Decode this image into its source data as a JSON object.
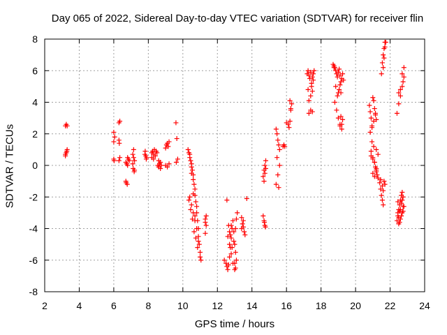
{
  "chart_data": {
    "type": "scatter",
    "title": "Day 065 of 2022, Sidereal Day-to-day VTEC variation (SDTVAR) for receiver flin",
    "xlabel": "GPS time / hours",
    "ylabel": "SDTVAR / TECUs",
    "xlim": [
      2,
      24
    ],
    "ylim": [
      -8,
      8
    ],
    "xticks": [
      2,
      4,
      6,
      8,
      10,
      12,
      14,
      16,
      18,
      20,
      22,
      24
    ],
    "yticks": [
      -8,
      -6,
      -4,
      -2,
      0,
      2,
      4,
      6,
      8
    ],
    "grid": true,
    "marker": "+",
    "color": "#ff0000",
    "series": [
      {
        "name": "SDTVAR",
        "x": [
          3.2,
          3.25,
          3.3,
          3.2,
          3.25,
          3.3,
          3.2,
          3.28,
          6.0,
          6.0,
          6.02,
          6.0,
          6.05,
          6.3,
          6.35,
          6.3,
          6.32,
          6.35,
          6.3,
          6.7,
          6.75,
          6.8,
          6.7,
          6.72,
          6.78,
          6.8,
          6.85,
          6.9,
          7.1,
          7.15,
          7.2,
          7.12,
          7.18,
          7.1,
          7.2,
          7.15,
          7.8,
          7.85,
          7.9,
          7.82,
          7.88,
          8.2,
          8.25,
          8.3,
          8.35,
          8.4,
          8.45,
          8.5,
          8.2,
          8.3,
          8.4,
          8.55,
          8.6,
          8.65,
          8.7,
          8.75,
          8.6,
          8.7,
          9.0,
          9.05,
          9.1,
          9.15,
          9.2,
          9.0,
          9.1,
          9.2,
          9.6,
          9.65,
          9.7,
          9.62,
          10.3,
          10.35,
          10.4,
          10.4,
          10.45,
          10.5,
          10.5,
          10.55,
          10.6,
          10.6,
          10.65,
          10.7,
          10.7,
          10.75,
          10.8,
          10.8,
          10.85,
          10.9,
          10.9,
          10.95,
          11.0,
          10.4,
          10.5,
          10.6,
          10.7,
          10.8,
          10.9,
          10.5,
          10.6,
          10.7,
          10.35,
          10.45,
          10.55,
          10.65,
          10.75,
          10.85,
          11.0,
          11.05,
          11.3,
          11.35,
          11.3,
          11.35,
          11.3,
          12.4,
          12.5,
          12.55,
          12.6,
          12.65,
          12.7,
          12.75,
          12.8,
          12.85,
          12.9,
          12.95,
          13.0,
          13.05,
          13.1,
          12.6,
          12.7,
          12.8,
          12.9,
          13.0,
          12.65,
          12.75,
          12.85,
          12.95,
          13.05,
          13.1,
          13.15,
          13.0,
          13.05,
          12.55,
          12.7,
          12.8,
          13.4,
          13.45,
          13.5,
          13.55,
          13.6,
          13.4,
          13.5,
          13.7,
          14.65,
          14.7,
          14.75,
          14.8,
          14.7,
          14.75,
          14.8,
          14.65,
          14.7,
          14.75,
          14.72,
          14.78,
          15.4,
          15.45,
          15.5,
          15.55,
          15.6,
          15.4,
          15.5,
          15.6,
          15.45,
          15.55,
          15.8,
          15.85,
          15.9,
          16.0,
          16.1,
          16.15,
          16.2,
          16.25,
          16.3,
          16.2,
          16.25,
          17.2,
          17.25,
          17.3,
          17.35,
          17.4,
          17.45,
          17.5,
          17.55,
          17.6,
          17.3,
          17.4,
          17.5,
          17.3,
          17.4,
          17.5,
          17.25,
          17.45,
          17.55,
          18.7,
          18.75,
          18.8,
          18.85,
          18.9,
          18.95,
          19.0,
          19.05,
          19.1,
          19.15,
          19.2,
          19.25,
          19.3,
          18.8,
          18.9,
          19.0,
          19.1,
          19.2,
          19.0,
          19.05,
          19.1,
          19.15,
          19.2,
          19.25,
          19.1,
          19.15,
          18.75,
          18.85,
          18.95,
          20.8,
          20.85,
          20.9,
          20.95,
          21.0,
          21.05,
          21.1,
          21.15,
          21.2,
          20.9,
          21.0,
          21.1,
          21.2,
          20.85,
          20.95,
          21.05,
          21.15,
          21.0,
          21.1,
          21.2,
          21.25,
          21.3,
          20.9,
          21.0,
          21.1,
          21.15,
          21.2,
          20.95,
          21.05,
          21.2,
          21.3,
          21.4,
          21.45,
          21.5,
          21.55,
          21.6,
          21.45,
          21.5,
          21.55,
          21.6,
          21.65,
          21.7,
          21.75,
          21.55,
          21.6,
          21.65,
          21.7,
          21.6,
          21.65,
          21.7,
          22.4,
          22.45,
          22.5,
          22.55,
          22.6,
          22.65,
          22.7,
          22.75,
          22.8,
          22.45,
          22.5,
          22.55,
          22.6,
          22.65,
          22.7,
          22.5,
          22.6,
          22.7,
          22.75,
          22.8,
          22.4,
          22.5,
          22.6,
          22.7,
          22.8,
          22.45,
          22.55,
          22.65,
          22.75,
          22.5,
          22.6,
          22.7,
          22.75
        ],
        "y": [
          2.5,
          2.6,
          2.5,
          0.6,
          0.8,
          1.0,
          0.7,
          0.9,
          1.5,
          0.4,
          0.3,
          2.1,
          1.8,
          2.7,
          2.8,
          1.6,
          1.4,
          0.5,
          0.3,
          0.2,
          0.1,
          0.0,
          -1.0,
          -1.1,
          -1.2,
          0.5,
          0.4,
          0.3,
          0.7,
          0.5,
          0.3,
          -0.2,
          -0.4,
          0.1,
          -0.3,
          1.0,
          0.7,
          0.6,
          0.5,
          0.9,
          0.4,
          0.8,
          0.9,
          0.7,
          1.0,
          0.6,
          0.9,
          0.8,
          0.5,
          0.4,
          0.6,
          0.0,
          -0.1,
          0.1,
          -0.2,
          0.0,
          0.3,
          0.2,
          1.1,
          1.3,
          1.4,
          1.2,
          1.5,
          0.0,
          -0.1,
          0.1,
          2.7,
          1.7,
          0.4,
          0.2,
          1.0,
          0.8,
          0.7,
          0.5,
          0.3,
          0.1,
          -0.1,
          -0.3,
          -0.6,
          -0.9,
          -1.2,
          -1.5,
          -1.9,
          -2.3,
          -2.6,
          -3.0,
          -3.5,
          -4.0,
          -4.5,
          -5.0,
          -5.5,
          -2.0,
          -2.5,
          -3.0,
          -3.5,
          -4.0,
          -4.8,
          -0.5,
          -1.8,
          -3.2,
          -2.2,
          -2.8,
          -3.4,
          -4.2,
          -4.6,
          -5.2,
          -5.8,
          -6.0,
          -3.4,
          -3.8,
          -4.3,
          -3.2,
          -3.6,
          -6.0,
          -6.2,
          -6.4,
          -6.6,
          -6.3,
          -5.8,
          -5.2,
          -4.6,
          -4.0,
          -3.5,
          -4.2,
          -5.0,
          -5.5,
          -6.0,
          -4.5,
          -5.0,
          -5.6,
          -6.2,
          -6.6,
          -3.8,
          -4.4,
          -5.2,
          -4.8,
          -4.0,
          -3.4,
          -3.0,
          -6.2,
          -6.5,
          -2.2,
          -4.2,
          -3.8,
          -4.0,
          -3.7,
          -3.5,
          -4.2,
          -4.4,
          -3.3,
          -3.9,
          -2.1,
          -0.7,
          -0.3,
          0.0,
          0.3,
          -1.0,
          -0.5,
          -0.2,
          -3.2,
          -3.5,
          -3.8,
          -3.6,
          -3.9,
          2.3,
          2.0,
          1.6,
          1.3,
          1.0,
          -1.2,
          -0.6,
          0.0,
          0.5,
          -1.4,
          1.2,
          1.3,
          1.2,
          2.7,
          2.6,
          2.4,
          2.8,
          3.5,
          3.9,
          4.1,
          3.6,
          5.8,
          6.0,
          5.7,
          5.5,
          5.9,
          5.2,
          5.6,
          5.8,
          6.0,
          4.1,
          4.4,
          4.7,
          3.3,
          3.5,
          3.4,
          4.8,
          5.0,
          5.4,
          6.4,
          6.3,
          6.2,
          6.0,
          5.8,
          5.6,
          5.9,
          6.1,
          5.7,
          5.3,
          5.5,
          5.8,
          5.4,
          4.0,
          3.5,
          3.0,
          2.6,
          2.3,
          4.6,
          4.8,
          5.1,
          4.6,
          2.6,
          2.9,
          2.5,
          3.1,
          6.2,
          5.0,
          4.4,
          3.8,
          3.4,
          3.0,
          2.5,
          4.3,
          4.1,
          3.6,
          3.2,
          2.9,
          0.9,
          0.5,
          0.2,
          -0.2,
          2.1,
          2.4,
          2.8,
          3.3,
          -0.5,
          -0.7,
          -0.4,
          -0.6,
          -0.8,
          0.6,
          0.4,
          0.2,
          -0.1,
          -0.3,
          1.5,
          1.2,
          1.0,
          0.7,
          -1.1,
          -1.5,
          -1.9,
          -2.2,
          -2.5,
          -0.9,
          5.8,
          6.5,
          7.0,
          7.4,
          7.8,
          7.8,
          -1.3,
          -1.6,
          -1.0,
          -1.2,
          6.2,
          6.8,
          7.5,
          -3.5,
          -3.2,
          -2.8,
          -2.5,
          -2.2,
          -1.9,
          -1.7,
          -2.0,
          -2.6,
          -3.0,
          -3.3,
          -3.6,
          -2.8,
          -2.4,
          -3.0,
          4.6,
          4.8,
          5.0,
          5.3,
          5.6,
          3.3,
          3.9,
          4.4,
          5.8,
          6.2,
          -2.3,
          -2.9,
          -3.2,
          -2.6,
          -3.7,
          -3.4,
          -2.2,
          -2.9
        ]
      }
    ]
  }
}
